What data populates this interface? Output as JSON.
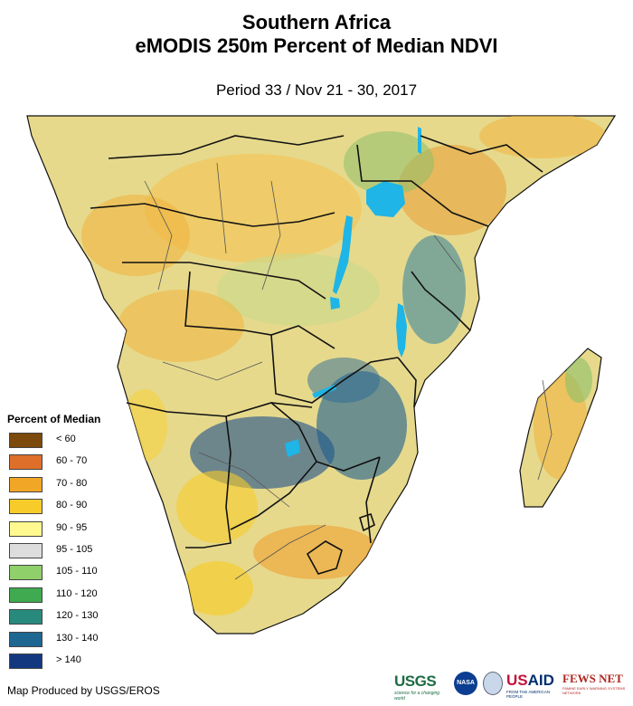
{
  "header": {
    "title_line1": "Southern Africa",
    "title_line2": "eMODIS 250m Percent of Median NDVI",
    "period": "Period 33 / Nov 21 - 30, 2017"
  },
  "legend": {
    "title": "Percent of Median",
    "items": [
      {
        "label": "< 60",
        "color": "#7b4a0c"
      },
      {
        "label": "60 - 70",
        "color": "#de6f2a"
      },
      {
        "label": "70 - 80",
        "color": "#f2a626"
      },
      {
        "label": "80 - 90",
        "color": "#f7cc2a"
      },
      {
        "label": "90 - 95",
        "color": "#fff98f"
      },
      {
        "label": "95 - 105",
        "color": "#dddddd"
      },
      {
        "label": "105 - 110",
        "color": "#8fd06a"
      },
      {
        "label": "110 - 120",
        "color": "#3faa4f"
      },
      {
        "label": "120 - 130",
        "color": "#288a7d"
      },
      {
        "label": "130 - 140",
        "color": "#1d6791"
      },
      {
        "label": "> 140",
        "color": "#143880"
      }
    ]
  },
  "footer": {
    "credit": "Map Produced by USGS/EROS",
    "logos": {
      "usgs": "USGS",
      "usgs_tagline": "science for a changing world",
      "nasa": "NASA",
      "usaid": "USAID",
      "usaid_tagline": "FROM THE AMERICAN PEOPLE",
      "fews": "FEWS NET",
      "fews_tagline": "FAMINE EARLY WARNING SYSTEMS NETWORK"
    }
  },
  "map": {
    "land_base": "#e6d98c",
    "water_color": "#1fb5e6",
    "border_color": "#111111"
  }
}
